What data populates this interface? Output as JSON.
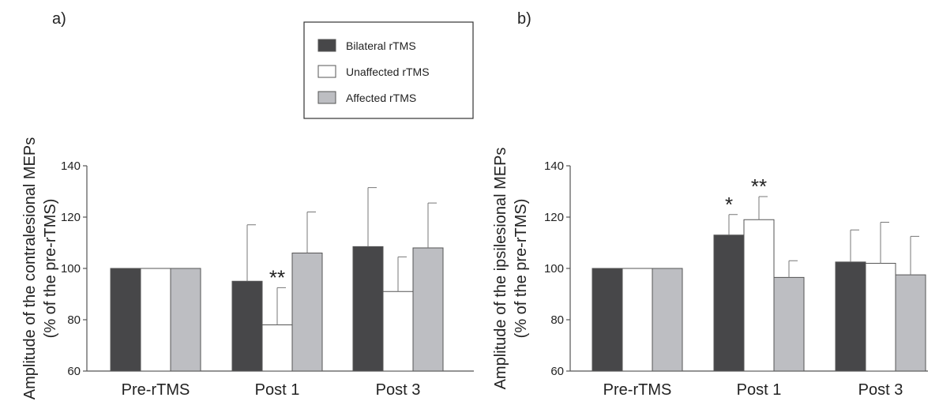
{
  "colors": {
    "bilateral": "#474749",
    "unaffected": "#ffffff",
    "affected": "#bdbec2",
    "stroke": "#555555"
  },
  "legend": {
    "entries": [
      "Bilateral rTMS",
      "Unaffected rTMS",
      "Affected rTMS"
    ]
  },
  "chart_data": [
    {
      "type": "bar",
      "panel_label": "a)",
      "ylabel_line1": "Amplitude of the contralesional MEPs",
      "ylabel_line2": "(% of the pre-rTMS)",
      "ylim": [
        60,
        140
      ],
      "yticks": [
        "60",
        "80",
        "100",
        "120",
        "140"
      ],
      "categories": [
        "Pre-rTMS",
        "Post 1",
        "Post 3"
      ],
      "series": [
        {
          "name": "Bilateral rTMS",
          "values": [
            100,
            95,
            108.5
          ],
          "errors": [
            0,
            22,
            23
          ]
        },
        {
          "name": "Unaffected rTMS",
          "values": [
            100,
            78,
            91
          ],
          "errors": [
            0,
            14.5,
            13.5
          ]
        },
        {
          "name": "Affected rTMS",
          "values": [
            100,
            106,
            108
          ],
          "errors": [
            0,
            16,
            17.5
          ]
        }
      ],
      "annotations": [
        {
          "text": "**",
          "category": 1,
          "series": 1
        }
      ]
    },
    {
      "type": "bar",
      "panel_label": "b)",
      "ylabel_line1": "Amplitude of the ipsilesional MEPs",
      "ylabel_line2": "(% of the pre-rTMS)",
      "ylim": [
        60,
        140
      ],
      "yticks": [
        "60",
        "80",
        "100",
        "120",
        "140"
      ],
      "categories": [
        "Pre-rTMS",
        "Post 1",
        "Post 3"
      ],
      "series": [
        {
          "name": "Bilateral rTMS",
          "values": [
            100,
            113,
            102.5
          ],
          "errors": [
            0,
            8,
            12.5
          ]
        },
        {
          "name": "Unaffected rTMS",
          "values": [
            100,
            119,
            102
          ],
          "errors": [
            0,
            9,
            16
          ]
        },
        {
          "name": "Affected rTMS",
          "values": [
            100,
            96.5,
            97.5
          ],
          "errors": [
            0,
            6.5,
            15
          ]
        }
      ],
      "annotations": [
        {
          "text": "*",
          "category": 1,
          "series": 0
        },
        {
          "text": "**",
          "category": 1,
          "series": 1
        }
      ]
    }
  ]
}
